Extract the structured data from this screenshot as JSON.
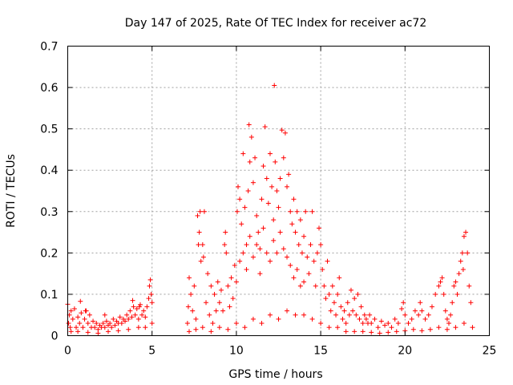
{
  "chart_data": {
    "type": "scatter",
    "title": "Day 147 of 2025, Rate Of TEC Index for receiver ac72",
    "xlabel": "GPS time / hours",
    "ylabel": "ROTI / TECUs",
    "xlim": [
      0,
      25
    ],
    "ylim": [
      0,
      0.7
    ],
    "x_ticks": [
      "0",
      "5",
      "10",
      "15",
      "20",
      "25"
    ],
    "y_ticks": [
      "0",
      "0.1",
      "0.2",
      "0.3",
      "0.4",
      "0.5",
      "0.6",
      "0.7"
    ],
    "grid": true,
    "marker": "plus",
    "color": "#ff0000",
    "series": [
      {
        "name": "ROTI",
        "description_points": "dense scatter; values listed as [hour, ROTI]",
        "points": [
          [
            0.0,
            0.076
          ],
          [
            0.05,
            0.03
          ],
          [
            0.1,
            0.05
          ],
          [
            0.15,
            0.02
          ],
          [
            0.2,
            0.06
          ],
          [
            0.3,
            0.04
          ],
          [
            0.4,
            0.065
          ],
          [
            0.5,
            0.02
          ],
          [
            0.6,
            0.045
          ],
          [
            0.7,
            0.03
          ],
          [
            0.8,
            0.055
          ],
          [
            0.9,
            0.02
          ],
          [
            1.0,
            0.04
          ],
          [
            1.1,
            0.06
          ],
          [
            1.2,
            0.03
          ],
          [
            1.3,
            0.05
          ],
          [
            1.4,
            0.02
          ],
          [
            1.5,
            0.035
          ],
          [
            0.75,
            0.083
          ],
          [
            1.05,
            0.06
          ],
          [
            1.6,
            0.02
          ],
          [
            1.7,
            0.03
          ],
          [
            1.8,
            0.015
          ],
          [
            1.9,
            0.025
          ],
          [
            2.0,
            0.02
          ],
          [
            2.1,
            0.03
          ],
          [
            2.2,
            0.02
          ],
          [
            2.3,
            0.035
          ],
          [
            2.4,
            0.025
          ],
          [
            2.5,
            0.03
          ],
          [
            2.6,
            0.02
          ],
          [
            2.7,
            0.04
          ],
          [
            2.8,
            0.025
          ],
          [
            2.9,
            0.035
          ],
          [
            3.0,
            0.03
          ],
          [
            3.1,
            0.045
          ],
          [
            3.2,
            0.03
          ],
          [
            3.3,
            0.04
          ],
          [
            3.4,
            0.035
          ],
          [
            3.5,
            0.05
          ],
          [
            3.6,
            0.04
          ],
          [
            3.7,
            0.06
          ],
          [
            3.8,
            0.045
          ],
          [
            3.9,
            0.07
          ],
          [
            4.0,
            0.05
          ],
          [
            4.1,
            0.065
          ],
          [
            4.2,
            0.04
          ],
          [
            4.3,
            0.075
          ],
          [
            4.4,
            0.05
          ],
          [
            4.5,
            0.06
          ],
          [
            4.6,
            0.045
          ],
          [
            4.7,
            0.07
          ],
          [
            4.8,
            0.09
          ],
          [
            4.85,
            0.12
          ],
          [
            4.9,
            0.135
          ],
          [
            4.95,
            0.1
          ],
          [
            5.0,
            0.08
          ],
          [
            3.85,
            0.085
          ],
          [
            4.25,
            0.07
          ],
          [
            2.2,
            0.05
          ],
          [
            0.2,
            0.01
          ],
          [
            0.6,
            0.01
          ],
          [
            1.2,
            0.008
          ],
          [
            1.8,
            0.006
          ],
          [
            2.4,
            0.01
          ],
          [
            3.0,
            0.012
          ],
          [
            3.6,
            0.015
          ],
          [
            4.2,
            0.02
          ],
          [
            4.6,
            0.02
          ],
          [
            5.0,
            0.03
          ],
          [
            7.1,
            0.03
          ],
          [
            7.15,
            0.07
          ],
          [
            7.2,
            0.14
          ],
          [
            7.3,
            0.1
          ],
          [
            7.4,
            0.06
          ],
          [
            7.5,
            0.12
          ],
          [
            7.6,
            0.04
          ],
          [
            7.7,
            0.29
          ],
          [
            7.75,
            0.22
          ],
          [
            7.8,
            0.25
          ],
          [
            7.85,
            0.3
          ],
          [
            7.9,
            0.18
          ],
          [
            8.0,
            0.22
          ],
          [
            8.05,
            0.19
          ],
          [
            8.1,
            0.3
          ],
          [
            8.2,
            0.08
          ],
          [
            8.3,
            0.15
          ],
          [
            8.4,
            0.05
          ],
          [
            8.5,
            0.12
          ],
          [
            8.6,
            0.03
          ],
          [
            8.7,
            0.1
          ],
          [
            8.8,
            0.06
          ],
          [
            8.9,
            0.13
          ],
          [
            9.0,
            0.08
          ],
          [
            9.1,
            0.11
          ],
          [
            9.2,
            0.06
          ],
          [
            9.3,
            0.22
          ],
          [
            9.35,
            0.25
          ],
          [
            9.4,
            0.2
          ],
          [
            9.5,
            0.12
          ],
          [
            9.6,
            0.07
          ],
          [
            9.7,
            0.14
          ],
          [
            9.8,
            0.09
          ],
          [
            9.9,
            0.17
          ],
          [
            10.0,
            0.13
          ],
          [
            10.05,
            0.3
          ],
          [
            10.1,
            0.36
          ],
          [
            10.2,
            0.33
          ],
          [
            10.3,
            0.27
          ],
          [
            10.4,
            0.44
          ],
          [
            10.5,
            0.31
          ],
          [
            10.6,
            0.22
          ],
          [
            10.7,
            0.35
          ],
          [
            10.75,
            0.51
          ],
          [
            10.8,
            0.42
          ],
          [
            10.9,
            0.48
          ],
          [
            11.0,
            0.37
          ],
          [
            11.1,
            0.43
          ],
          [
            11.2,
            0.29
          ],
          [
            11.3,
            0.25
          ],
          [
            11.4,
            0.21
          ],
          [
            11.5,
            0.33
          ],
          [
            11.6,
            0.41
          ],
          [
            11.7,
            0.505
          ],
          [
            11.8,
            0.38
          ],
          [
            11.9,
            0.32
          ],
          [
            12.0,
            0.44
          ],
          [
            12.1,
            0.36
          ],
          [
            12.2,
            0.28
          ],
          [
            12.25,
            0.605
          ],
          [
            12.3,
            0.42
          ],
          [
            12.4,
            0.35
          ],
          [
            12.5,
            0.31
          ],
          [
            12.6,
            0.38
          ],
          [
            12.7,
            0.497
          ],
          [
            12.8,
            0.43
          ],
          [
            12.9,
            0.49
          ],
          [
            13.0,
            0.36
          ],
          [
            13.1,
            0.39
          ],
          [
            13.2,
            0.3
          ],
          [
            13.3,
            0.27
          ],
          [
            13.4,
            0.33
          ],
          [
            13.5,
            0.25
          ],
          [
            13.6,
            0.3
          ],
          [
            13.7,
            0.22
          ],
          [
            13.8,
            0.28
          ],
          [
            13.9,
            0.2
          ],
          [
            14.0,
            0.24
          ],
          [
            14.1,
            0.3
          ],
          [
            14.2,
            0.19
          ],
          [
            14.3,
            0.15
          ],
          [
            14.4,
            0.22
          ],
          [
            14.5,
            0.3
          ],
          [
            14.6,
            0.18
          ],
          [
            14.7,
            0.12
          ],
          [
            14.8,
            0.2
          ],
          [
            14.9,
            0.26
          ],
          [
            15.0,
            0.22
          ],
          [
            15.1,
            0.16
          ],
          [
            15.2,
            0.12
          ],
          [
            15.3,
            0.09
          ],
          [
            15.4,
            0.18
          ],
          [
            15.5,
            0.1
          ],
          [
            15.6,
            0.06
          ],
          [
            15.7,
            0.12
          ],
          [
            15.8,
            0.08
          ],
          [
            15.9,
            0.05
          ],
          [
            16.0,
            0.1
          ],
          [
            16.1,
            0.14
          ],
          [
            16.2,
            0.07
          ],
          [
            16.3,
            0.04
          ],
          [
            16.4,
            0.06
          ],
          [
            16.5,
            0.03
          ],
          [
            16.6,
            0.08
          ],
          [
            16.7,
            0.05
          ],
          [
            16.8,
            0.11
          ],
          [
            16.9,
            0.06
          ],
          [
            17.0,
            0.09
          ],
          [
            17.1,
            0.05
          ],
          [
            17.2,
            0.1
          ],
          [
            17.3,
            0.04
          ],
          [
            17.4,
            0.07
          ],
          [
            17.5,
            0.03
          ],
          [
            17.6,
            0.05
          ],
          [
            17.7,
            0.04
          ],
          [
            17.8,
            0.03
          ],
          [
            17.9,
            0.05
          ],
          [
            18.0,
            0.03
          ],
          [
            18.2,
            0.04
          ],
          [
            18.4,
            0.02
          ],
          [
            18.6,
            0.035
          ],
          [
            18.8,
            0.025
          ],
          [
            19.0,
            0.03
          ],
          [
            19.2,
            0.02
          ],
          [
            19.4,
            0.04
          ],
          [
            19.6,
            0.03
          ],
          [
            19.8,
            0.065
          ],
          [
            19.9,
            0.08
          ],
          [
            20.0,
            0.05
          ],
          [
            20.2,
            0.03
          ],
          [
            20.4,
            0.04
          ],
          [
            20.6,
            0.06
          ],
          [
            20.8,
            0.05
          ],
          [
            20.9,
            0.08
          ],
          [
            21.0,
            0.06
          ],
          [
            21.2,
            0.04
          ],
          [
            21.4,
            0.05
          ],
          [
            21.6,
            0.07
          ],
          [
            21.8,
            0.1
          ],
          [
            22.0,
            0.12
          ],
          [
            22.1,
            0.13
          ],
          [
            22.2,
            0.14
          ],
          [
            22.3,
            0.1
          ],
          [
            22.4,
            0.06
          ],
          [
            22.5,
            0.04
          ],
          [
            22.6,
            0.03
          ],
          [
            22.7,
            0.05
          ],
          [
            22.8,
            0.08
          ],
          [
            22.9,
            0.12
          ],
          [
            23.0,
            0.13
          ],
          [
            23.1,
            0.1
          ],
          [
            23.2,
            0.15
          ],
          [
            23.3,
            0.18
          ],
          [
            23.4,
            0.2
          ],
          [
            23.45,
            0.16
          ],
          [
            23.5,
            0.24
          ],
          [
            23.6,
            0.25
          ],
          [
            23.7,
            0.2
          ],
          [
            23.8,
            0.12
          ],
          [
            23.9,
            0.08
          ],
          [
            7.2,
            0.01
          ],
          [
            7.6,
            0.015
          ],
          [
            8.0,
            0.02
          ],
          [
            8.5,
            0.01
          ],
          [
            9.0,
            0.02
          ],
          [
            9.5,
            0.015
          ],
          [
            10.0,
            0.03
          ],
          [
            10.5,
            0.02
          ],
          [
            11.0,
            0.04
          ],
          [
            11.5,
            0.03
          ],
          [
            12.0,
            0.05
          ],
          [
            12.5,
            0.04
          ],
          [
            13.0,
            0.06
          ],
          [
            13.5,
            0.05
          ],
          [
            14.0,
            0.05
          ],
          [
            14.5,
            0.04
          ],
          [
            15.0,
            0.03
          ],
          [
            15.5,
            0.02
          ],
          [
            16.0,
            0.02
          ],
          [
            16.5,
            0.01
          ],
          [
            17.0,
            0.01
          ],
          [
            17.5,
            0.01
          ],
          [
            18.0,
            0.008
          ],
          [
            18.5,
            0.006
          ],
          [
            19.0,
            0.008
          ],
          [
            19.5,
            0.01
          ],
          [
            20.0,
            0.012
          ],
          [
            20.5,
            0.015
          ],
          [
            21.0,
            0.012
          ],
          [
            21.5,
            0.015
          ],
          [
            22.0,
            0.02
          ],
          [
            22.5,
            0.015
          ],
          [
            23.0,
            0.02
          ],
          [
            23.5,
            0.03
          ],
          [
            24.0,
            0.02
          ],
          [
            10.2,
            0.18
          ],
          [
            10.4,
            0.2
          ],
          [
            10.6,
            0.16
          ],
          [
            10.8,
            0.24
          ],
          [
            11.0,
            0.19
          ],
          [
            11.2,
            0.22
          ],
          [
            11.4,
            0.15
          ],
          [
            11.6,
            0.26
          ],
          [
            11.8,
            0.2
          ],
          [
            12.0,
            0.18
          ],
          [
            12.2,
            0.23
          ],
          [
            12.4,
            0.2
          ],
          [
            12.6,
            0.25
          ],
          [
            12.8,
            0.21
          ],
          [
            13.0,
            0.19
          ],
          [
            13.2,
            0.17
          ],
          [
            13.4,
            0.14
          ],
          [
            13.6,
            0.16
          ],
          [
            13.8,
            0.12
          ],
          [
            14.0,
            0.13
          ]
        ]
      }
    ]
  }
}
